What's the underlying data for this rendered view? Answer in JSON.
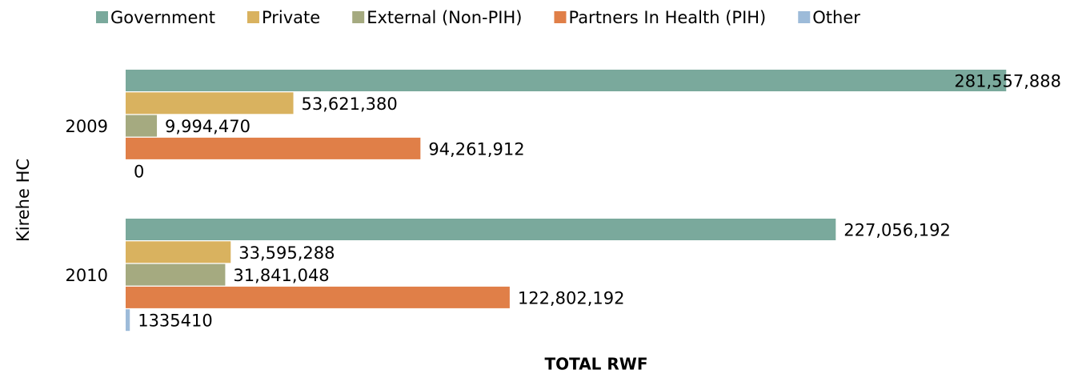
{
  "chart_data": {
    "type": "bar",
    "orientation": "horizontal",
    "y_label": "Kirehe HC",
    "x_label": "TOTAL RWF",
    "categories": [
      "2009",
      "2010"
    ],
    "xlim": [
      0,
      282000000
    ],
    "legend": "top",
    "series": [
      {
        "name": "Government",
        "color": "#7aa99c",
        "values": [
          281557888,
          227056192
        ],
        "value_labels": [
          "281,557,888",
          "227,056,192"
        ]
      },
      {
        "name": "Private",
        "color": "#d9b25f",
        "values": [
          53621380,
          33595288
        ],
        "value_labels": [
          "53,621,380",
          "33,595,288"
        ]
      },
      {
        "name": "External (Non-PIH)",
        "color": "#a5aa80",
        "values": [
          9994470,
          31841048
        ],
        "value_labels": [
          "9,994,470",
          "31,841,048"
        ]
      },
      {
        "name": "Partners In Health (PIH)",
        "color": "#e07f48",
        "values": [
          94261912,
          122802192
        ],
        "value_labels": [
          "94,261,912",
          "122,802,192"
        ]
      },
      {
        "name": "Other",
        "color": "#9dbbd9",
        "values": [
          0,
          1335410
        ],
        "value_labels": [
          "0",
          "1335410"
        ]
      }
    ]
  }
}
